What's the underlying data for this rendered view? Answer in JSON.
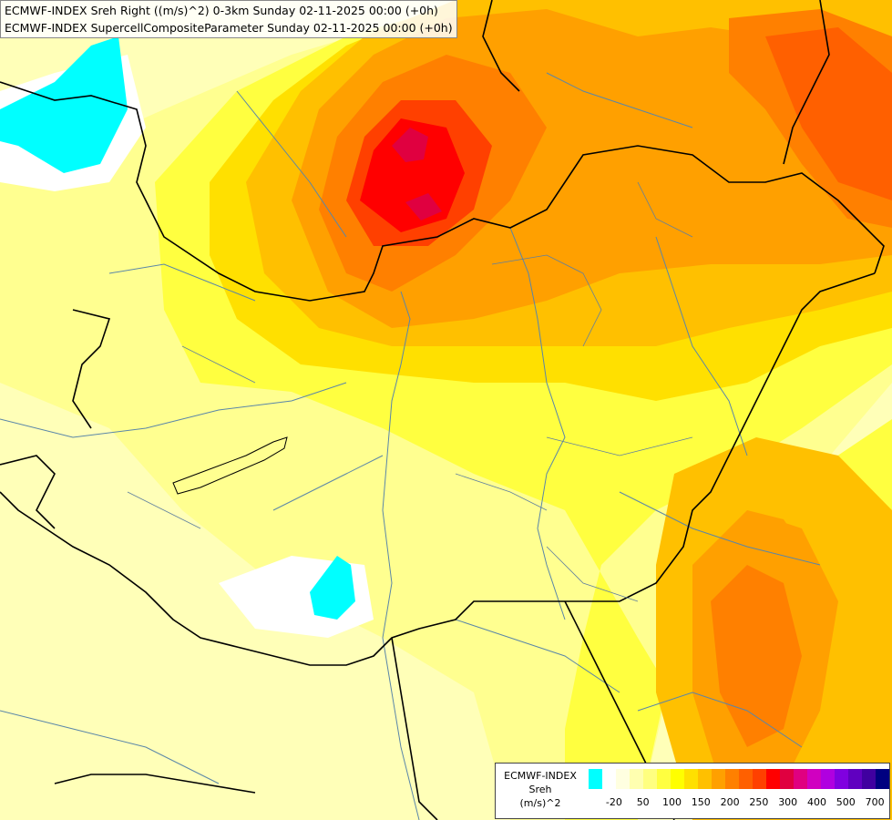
{
  "title": {
    "line1": "ECMWF-INDEX Sreh Right ((m/s)^2) 0-3km Sunday 02-11-2025 00:00 (+0h)",
    "line2": "ECMWF-INDEX SupercellCompositeParameter Sunday 02-11-2025 00:00 (+0h)"
  },
  "legend": {
    "line1": "ECMWF-INDEX",
    "line2": "Sreh",
    "line3": "(m/s)^2",
    "colors": [
      "#00ffff",
      "#ffffff",
      "#ffffe0",
      "#ffffb0",
      "#ffff80",
      "#ffff40",
      "#ffff00",
      "#ffe000",
      "#ffc000",
      "#ffa000",
      "#ff8000",
      "#ff6000",
      "#ff4000",
      "#ff0000",
      "#e00040",
      "#e00080",
      "#d000c0",
      "#b000e0",
      "#8000e0",
      "#6000c0",
      "#4000a0",
      "#000080"
    ],
    "ticks": [
      {
        "label": "-20",
        "i": 1
      },
      {
        "label": "50",
        "i": 3
      },
      {
        "label": "100",
        "i": 5
      },
      {
        "label": "150",
        "i": 7
      },
      {
        "label": "200",
        "i": 9
      },
      {
        "label": "250",
        "i": 11
      },
      {
        "label": "300",
        "i": 13
      },
      {
        "label": "400",
        "i": 15
      },
      {
        "label": "500",
        "i": 17
      },
      {
        "label": "700",
        "i": 19
      }
    ]
  }
}
